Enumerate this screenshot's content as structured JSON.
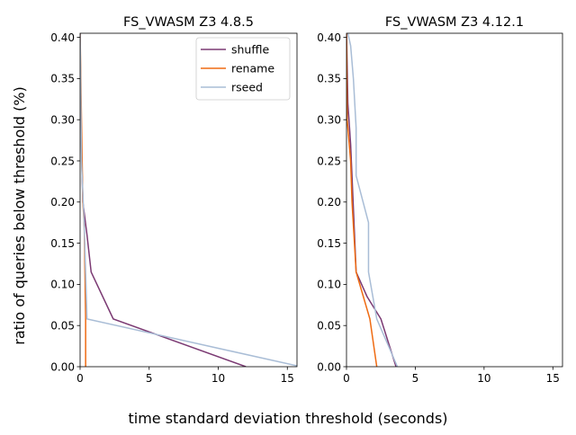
{
  "figure": {
    "shared_xlabel": "time standard deviation threshold (seconds)",
    "shared_ylabel": "ratio of queries below threshold (%)"
  },
  "colors": {
    "shuffle": "#7b3a73",
    "rename": "#ef6b13",
    "rseed": "#a9bdd6"
  },
  "chart_data": [
    {
      "type": "line",
      "title": "FS_VWASM Z3 4.8.5",
      "xlim": [
        0,
        15.7
      ],
      "ylim": [
        0,
        0.405
      ],
      "xticks": [
        0,
        5,
        10,
        15
      ],
      "yticks": [
        0.0,
        0.05,
        0.1,
        0.15,
        0.2,
        0.25,
        0.3,
        0.35,
        0.4
      ],
      "legend": {
        "placement": "top-right",
        "entries": [
          "shuffle",
          "rename",
          "rseed"
        ]
      },
      "series": [
        {
          "name": "shuffle",
          "x": [
            0.0,
            0.05,
            0.2,
            0.5,
            0.8,
            2.4,
            12.0
          ],
          "y": [
            0.405,
            0.3,
            0.2,
            0.16,
            0.115,
            0.058,
            0.0
          ]
        },
        {
          "name": "rename",
          "x": [
            0.0,
            0.1,
            0.2,
            0.3,
            0.4,
            0.4
          ],
          "y": [
            0.405,
            0.3,
            0.2,
            0.17,
            0.06,
            0.0
          ]
        },
        {
          "name": "rseed",
          "x": [
            0.0,
            0.05,
            0.1,
            0.3,
            0.5,
            15.7
          ],
          "y": [
            0.405,
            0.33,
            0.25,
            0.17,
            0.058,
            0.001
          ]
        }
      ]
    },
    {
      "type": "line",
      "title": "FS_VWASM Z3 4.12.1",
      "xlim": [
        0,
        15.7
      ],
      "ylim": [
        0,
        0.405
      ],
      "xticks": [
        0,
        5,
        10,
        15
      ],
      "yticks": [
        0.0,
        0.05,
        0.1,
        0.15,
        0.2,
        0.25,
        0.3,
        0.35,
        0.4
      ],
      "series": [
        {
          "name": "shuffle",
          "x": [
            0.0,
            0.1,
            0.3,
            0.7,
            1.5,
            2.5,
            3.6
          ],
          "y": [
            0.405,
            0.32,
            0.27,
            0.115,
            0.085,
            0.058,
            0.0
          ]
        },
        {
          "name": "rename",
          "x": [
            0.0,
            0.05,
            0.3,
            0.4,
            0.7,
            1.7,
            2.2
          ],
          "y": [
            0.405,
            0.3,
            0.25,
            0.2,
            0.115,
            0.058,
            0.0
          ]
        },
        {
          "name": "rseed",
          "x": [
            0.1,
            0.3,
            0.5,
            0.7,
            0.7,
            1.6,
            1.6,
            2.2,
            3.7
          ],
          "y": [
            0.405,
            0.39,
            0.35,
            0.29,
            0.232,
            0.175,
            0.115,
            0.058,
            0.0
          ]
        }
      ]
    }
  ]
}
